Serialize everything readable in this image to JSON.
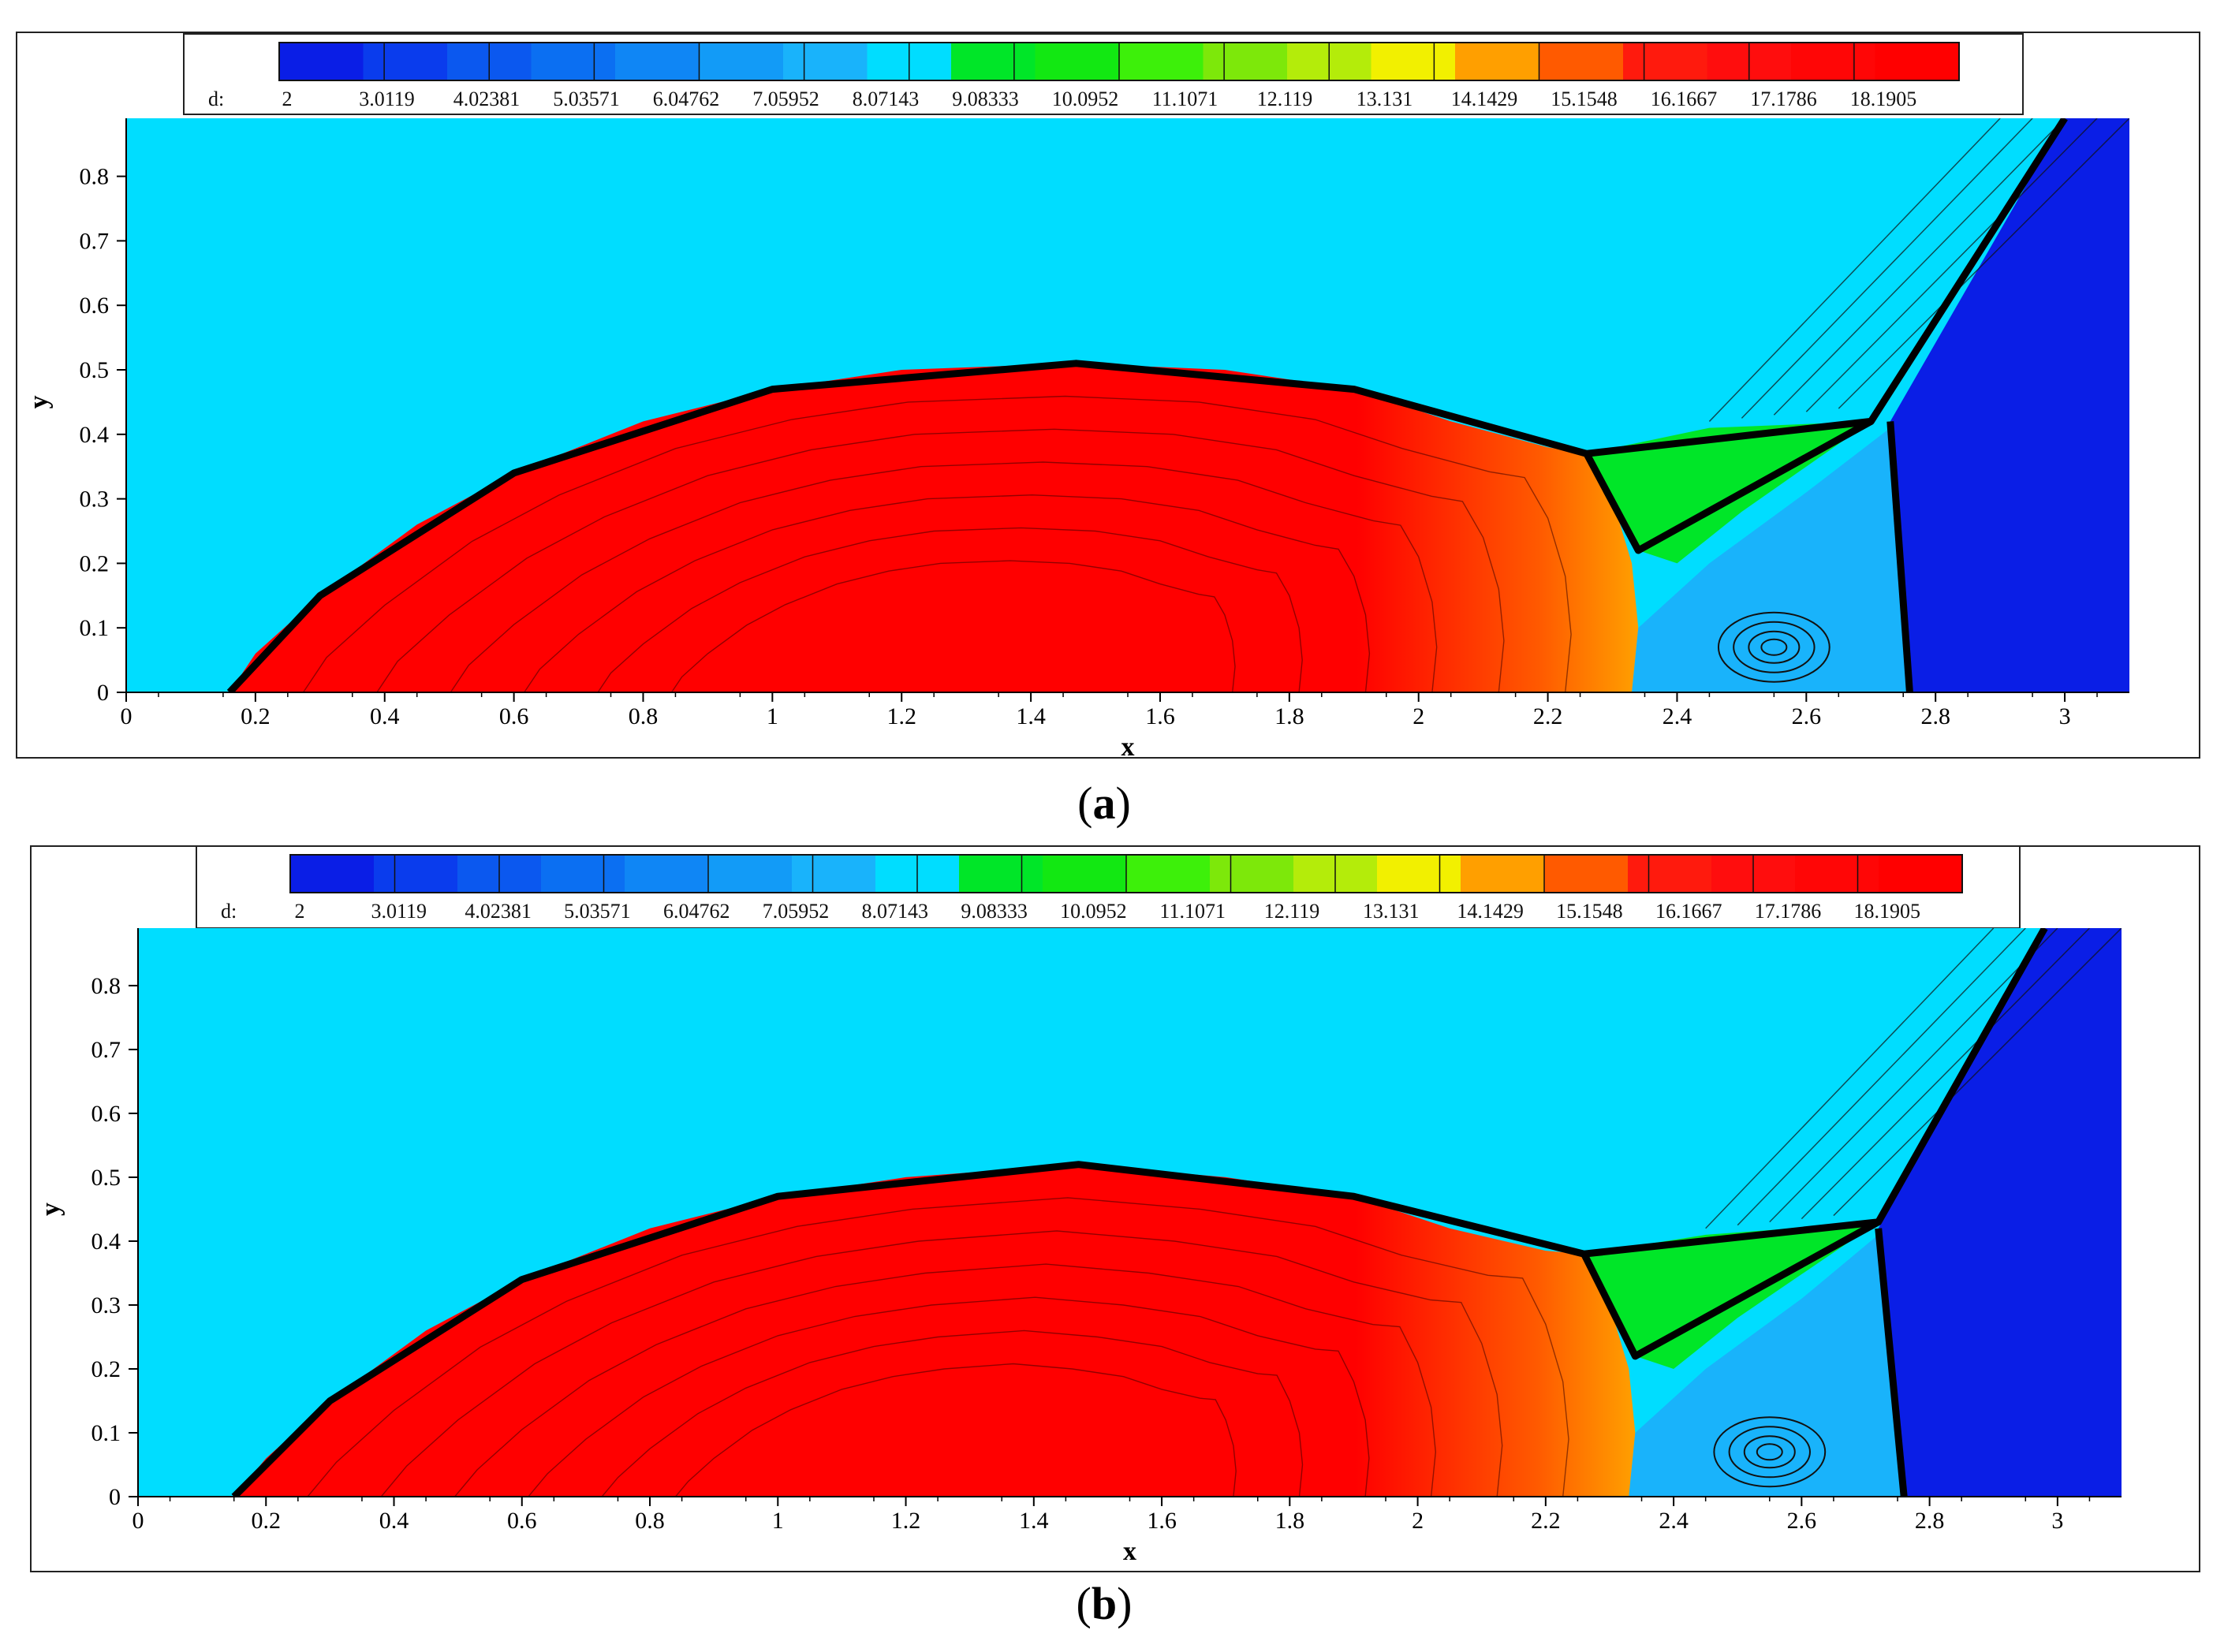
{
  "legend": {
    "variable_label": "d:",
    "tick_labels": [
      "2",
      "3.0119",
      "4.02381",
      "5.03571",
      "6.04762",
      "7.05952",
      "8.07143",
      "9.08333",
      "10.0952",
      "11.1071",
      "12.119",
      "13.131",
      "14.1429",
      "15.1548",
      "16.1667",
      "17.1786",
      "18.1905"
    ],
    "levels": [
      2,
      3.0119,
      4.02381,
      5.03571,
      6.04762,
      7.05952,
      8.07143,
      9.08333,
      10.0952,
      11.1071,
      12.119,
      13.131,
      14.1429,
      15.1548,
      16.1667,
      17.1786,
      18.1905
    ],
    "colors": [
      "#0a1ee6",
      "#0a3ced",
      "#0b58ef",
      "#0b6ff2",
      "#0f86f5",
      "#129bf7",
      "#19b3fb",
      "#00ddff",
      "#00e628",
      "#12e812",
      "#3df00a",
      "#7de80a",
      "#b4ec0a",
      "#f2f000",
      "#ff9f00",
      "#ff5a00",
      "#ff1a0d",
      "#ff0d0d",
      "#ff0606",
      "#ff0000"
    ]
  },
  "panels": [
    {
      "id": "a",
      "caption_letter": "a",
      "xlabel": "x",
      "ylabel": "y",
      "xticks": [
        "0",
        "0.2",
        "0.4",
        "0.6",
        "0.8",
        "1",
        "1.2",
        "1.4",
        "1.6",
        "1.8",
        "2",
        "2.2",
        "2.4",
        "2.6",
        "2.8",
        "3"
      ],
      "yticks": [
        "0",
        "0.1",
        "0.2",
        "0.3",
        "0.4",
        "0.5",
        "0.6",
        "0.7",
        "0.8"
      ]
    },
    {
      "id": "b",
      "caption_letter": "b",
      "xlabel": "x",
      "ylabel": "y",
      "xticks": [
        "0",
        "0.2",
        "0.4",
        "0.6",
        "0.8",
        "1",
        "1.2",
        "1.4",
        "1.6",
        "1.8",
        "2",
        "2.2",
        "2.4",
        "2.6",
        "2.8",
        "3"
      ],
      "yticks": [
        "0",
        "0.1",
        "0.2",
        "0.3",
        "0.4",
        "0.5",
        "0.6",
        "0.7",
        "0.8"
      ]
    }
  ],
  "chart_data": [
    {
      "type": "heatmap",
      "subtype": "filled contour",
      "panel": "a",
      "variable": "d",
      "xlabel": "x",
      "ylabel": "y",
      "xlim": [
        0,
        3.1
      ],
      "ylim": [
        0,
        0.89
      ],
      "regions": [
        {
          "name": "pre-shock",
          "level": 8.07,
          "color": "#00ddff"
        },
        {
          "name": "post-shock bubble",
          "level": 18.2,
          "color": "#ff0000",
          "boundary": [
            [
              0.16,
              0
            ],
            [
              0.2,
              0.06
            ],
            [
              0.3,
              0.15
            ],
            [
              0.45,
              0.26
            ],
            [
              0.6,
              0.34
            ],
            [
              0.8,
              0.42
            ],
            [
              1.0,
              0.47
            ],
            [
              1.2,
              0.5
            ],
            [
              1.47,
              0.51
            ],
            [
              1.7,
              0.5
            ],
            [
              1.9,
              0.47
            ],
            [
              2.05,
              0.42
            ],
            [
              2.2,
              0.38
            ],
            [
              2.26,
              0.37
            ],
            [
              2.3,
              0.3
            ],
            [
              2.33,
              0.2
            ],
            [
              2.34,
              0.1
            ],
            [
              2.33,
              0
            ]
          ]
        },
        {
          "name": "green wedge",
          "level": 10.5,
          "color": "#00e628",
          "boundary": [
            [
              2.26,
              0.37
            ],
            [
              2.45,
              0.41
            ],
            [
              2.7,
              0.42
            ],
            [
              2.5,
              0.28
            ],
            [
              2.4,
              0.2
            ],
            [
              2.34,
              0.22
            ]
          ]
        },
        {
          "name": "light-blue vortex region",
          "level": 6.5,
          "color": "#19b3fb",
          "boundary": [
            [
              2.34,
              0.1
            ],
            [
              2.45,
              0.2
            ],
            [
              2.6,
              0.31
            ],
            [
              2.73,
              0.41
            ],
            [
              2.76,
              0
            ],
            [
              2.33,
              0
            ]
          ]
        },
        {
          "name": "dark-blue right region",
          "level": 2,
          "color": "#0a1ee6",
          "boundary": [
            [
              2.76,
              0
            ],
            [
              2.73,
              0.42
            ],
            [
              3.0,
              0.89
            ],
            [
              3.1,
              0.89
            ],
            [
              3.1,
              0
            ]
          ]
        }
      ],
      "shock_lines": [
        [
          [
            0.16,
            0
          ],
          [
            0.3,
            0.15
          ],
          [
            0.6,
            0.34
          ],
          [
            1.0,
            0.47
          ],
          [
            1.47,
            0.51
          ],
          [
            1.9,
            0.47
          ],
          [
            2.26,
            0.37
          ],
          [
            2.7,
            0.42
          ],
          [
            3.0,
            0.89
          ]
        ],
        [
          [
            2.76,
            0
          ],
          [
            2.73,
            0.42
          ]
        ],
        [
          [
            2.26,
            0.37
          ],
          [
            2.34,
            0.22
          ],
          [
            2.7,
            0.42
          ]
        ]
      ]
    },
    {
      "type": "heatmap",
      "subtype": "filled contour",
      "panel": "b",
      "variable": "d",
      "xlabel": "x",
      "ylabel": "y",
      "xlim": [
        0,
        3.1
      ],
      "ylim": [
        0,
        0.89
      ],
      "regions": [
        {
          "name": "pre-shock",
          "level": 8.07,
          "color": "#00ddff"
        },
        {
          "name": "post-shock bubble",
          "level": 18.2,
          "color": "#ff0000",
          "boundary": [
            [
              0.15,
              0
            ],
            [
              0.2,
              0.06
            ],
            [
              0.3,
              0.15
            ],
            [
              0.45,
              0.26
            ],
            [
              0.6,
              0.34
            ],
            [
              0.8,
              0.42
            ],
            [
              1.0,
              0.47
            ],
            [
              1.2,
              0.5
            ],
            [
              1.47,
              0.52
            ],
            [
              1.7,
              0.5
            ],
            [
              1.9,
              0.47
            ],
            [
              2.05,
              0.42
            ],
            [
              2.2,
              0.385
            ],
            [
              2.26,
              0.38
            ],
            [
              2.3,
              0.3
            ],
            [
              2.33,
              0.2
            ],
            [
              2.34,
              0.1
            ],
            [
              2.33,
              0
            ]
          ]
        },
        {
          "name": "green wedge",
          "level": 10.5,
          "color": "#00e628",
          "boundary": [
            [
              2.26,
              0.38
            ],
            [
              2.45,
              0.41
            ],
            [
              2.72,
              0.43
            ],
            [
              2.5,
              0.28
            ],
            [
              2.4,
              0.2
            ],
            [
              2.34,
              0.22
            ]
          ]
        },
        {
          "name": "light-blue vortex region",
          "level": 6.5,
          "color": "#19b3fb",
          "boundary": [
            [
              2.34,
              0.1
            ],
            [
              2.45,
              0.2
            ],
            [
              2.6,
              0.31
            ],
            [
              2.72,
              0.41
            ],
            [
              2.76,
              0
            ],
            [
              2.33,
              0
            ]
          ]
        },
        {
          "name": "dark-blue right region",
          "level": 2,
          "color": "#0a1ee6",
          "boundary": [
            [
              2.76,
              0
            ],
            [
              2.72,
              0.42
            ],
            [
              2.98,
              0.89
            ],
            [
              3.1,
              0.89
            ],
            [
              3.1,
              0
            ]
          ]
        }
      ],
      "shock_lines": [
        [
          [
            0.15,
            0
          ],
          [
            0.3,
            0.15
          ],
          [
            0.6,
            0.34
          ],
          [
            1.0,
            0.47
          ],
          [
            1.47,
            0.52
          ],
          [
            1.9,
            0.47
          ],
          [
            2.26,
            0.38
          ],
          [
            2.72,
            0.43
          ],
          [
            2.98,
            0.89
          ]
        ],
        [
          [
            2.76,
            0
          ],
          [
            2.72,
            0.42
          ]
        ],
        [
          [
            2.26,
            0.38
          ],
          [
            2.34,
            0.22
          ],
          [
            2.72,
            0.43
          ]
        ]
      ]
    }
  ]
}
